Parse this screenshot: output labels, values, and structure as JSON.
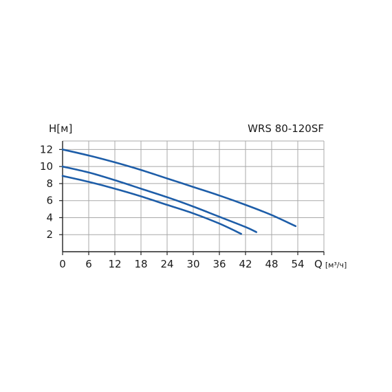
{
  "chart_data": {
    "type": "line",
    "title": "WRS 80-120SF",
    "ylabel": "H",
    "ylabel_unit": "[м]",
    "xlabel": "Q",
    "xlabel_unit": "[м³/ч]",
    "xlim": [
      0,
      60
    ],
    "ylim": [
      0,
      13
    ],
    "x_ticks": [
      0,
      6,
      12,
      18,
      24,
      30,
      36,
      42,
      48,
      54
    ],
    "y_ticks": [
      2,
      4,
      6,
      8,
      10,
      12
    ],
    "grid": true,
    "series": [
      {
        "x": [
          0,
          6,
          12,
          18,
          24,
          30,
          36,
          42,
          48,
          53.5
        ],
        "y": [
          12.0,
          11.3,
          10.5,
          9.6,
          8.6,
          7.6,
          6.6,
          5.5,
          4.3,
          3.0
        ]
      },
      {
        "x": [
          0,
          6,
          12,
          18,
          24,
          30,
          36,
          42,
          44.5
        ],
        "y": [
          10.0,
          9.3,
          8.4,
          7.4,
          6.4,
          5.3,
          4.1,
          2.9,
          2.3
        ]
      },
      {
        "x": [
          0,
          6,
          12,
          18,
          24,
          30,
          36,
          41
        ],
        "y": [
          8.9,
          8.2,
          7.4,
          6.5,
          5.5,
          4.5,
          3.3,
          2.1
        ]
      }
    ],
    "colors": {
      "line": "#1d5da8",
      "grid": "#a8a8a8",
      "axis": "#222222"
    }
  }
}
